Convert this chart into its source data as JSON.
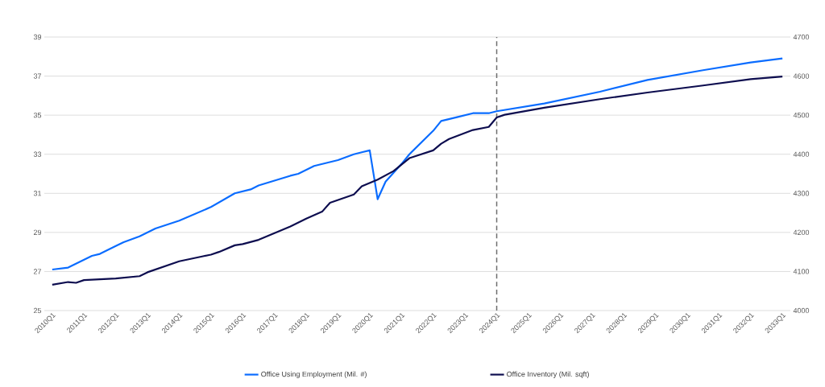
{
  "chart_data": {
    "type": "line",
    "xlim": [
      "2009-10",
      "2033-04"
    ],
    "xticks": [
      {
        "value": "2010-01",
        "label": "2010Q1"
      },
      {
        "value": "2011-01",
        "label": "2011Q1"
      },
      {
        "value": "2012-01",
        "label": "2012Q1"
      },
      {
        "value": "2013-01",
        "label": "2013Q1"
      },
      {
        "value": "2014-01",
        "label": "2014Q1"
      },
      {
        "value": "2015-01",
        "label": "2015Q1"
      },
      {
        "value": "2016-01",
        "label": "2016Q1"
      },
      {
        "value": "2017-01",
        "label": "2017Q1"
      },
      {
        "value": "2018-01",
        "label": "2018Q1"
      },
      {
        "value": "2019-01",
        "label": "2019Q1"
      },
      {
        "value": "2020-01",
        "label": "2020Q1"
      },
      {
        "value": "2021-01",
        "label": "2021Q1"
      },
      {
        "value": "2022-01",
        "label": "2022Q1"
      },
      {
        "value": "2023-01",
        "label": "2023Q1"
      },
      {
        "value": "2024-01",
        "label": "2024Q1"
      },
      {
        "value": "2025-01",
        "label": "2025Q1"
      },
      {
        "value": "2026-01",
        "label": "2026Q1"
      },
      {
        "value": "2027-01",
        "label": "2027Q1"
      },
      {
        "value": "2028-01",
        "label": "2028Q1"
      },
      {
        "value": "2029-01",
        "label": "2029Q1"
      },
      {
        "value": "2030-01",
        "label": "2030Q1"
      },
      {
        "value": "2031-01",
        "label": "2031Q1"
      },
      {
        "value": "2032-01",
        "label": "2032Q1"
      },
      {
        "value": "2033-01",
        "label": "2033Q1"
      }
    ],
    "ylim": [
      25,
      39
    ],
    "yticks": [
      25,
      27,
      29,
      31,
      33,
      35,
      37,
      39
    ],
    "y2lim": [
      4000,
      4700
    ],
    "y2ticks": [
      4000,
      4100,
      4200,
      4300,
      4400,
      4500,
      4600,
      4700
    ],
    "grid": "y",
    "legend": "bottom",
    "marker": "none",
    "line_style": "solid",
    "ref_lines": [
      {
        "axis": "x",
        "value": "2024-01",
        "color": "#6e6e6e",
        "line_style": "dashed"
      }
    ],
    "series": [
      {
        "name": "Office Using Employment (Mil. #)",
        "color": "#0a6cff",
        "axis": "y",
        "x": [
          "2010-01",
          "2010-07",
          "2011-04",
          "2011-07",
          "2012-01",
          "2012-04",
          "2012-10",
          "2013-04",
          "2014-01",
          "2015-01",
          "2015-10",
          "2016-04",
          "2016-07",
          "2017-07",
          "2017-10",
          "2018-04",
          "2019-01",
          "2019-07",
          "2019-10",
          "2020-01",
          "2020-04",
          "2020-07",
          "2021-01",
          "2021-04",
          "2022-01",
          "2022-04",
          "2022-10",
          "2023-01",
          "2023-04",
          "2023-10",
          "2024-01",
          "2025-07",
          "2027-04",
          "2028-10",
          "2030-07",
          "2032-01",
          "2033-01"
        ],
        "values": [
          27.1,
          27.2,
          27.8,
          27.9,
          28.3,
          28.5,
          28.8,
          29.2,
          29.6,
          30.3,
          31.0,
          31.2,
          31.4,
          31.9,
          32.0,
          32.4,
          32.7,
          33.0,
          33.1,
          33.2,
          30.7,
          31.6,
          32.5,
          33.0,
          34.2,
          34.7,
          34.9,
          35.0,
          35.1,
          35.1,
          35.2,
          35.6,
          36.2,
          36.8,
          37.3,
          37.7,
          37.9
        ]
      },
      {
        "name": "Office Inventory  (Mil. sqft)",
        "color": "#0d0d4f",
        "axis": "y2",
        "x": [
          "2010-01",
          "2010-07",
          "2010-10",
          "2011-01",
          "2012-01",
          "2012-10",
          "2013-01",
          "2014-01",
          "2014-10",
          "2015-01",
          "2015-04",
          "2015-10",
          "2016-01",
          "2016-07",
          "2017-01",
          "2017-07",
          "2018-01",
          "2018-07",
          "2018-10",
          "2019-07",
          "2019-10",
          "2020-04",
          "2020-10",
          "2021-04",
          "2022-01",
          "2022-04",
          "2022-07",
          "2023-04",
          "2023-10",
          "2024-01",
          "2024-04",
          "2025-07",
          "2027-04",
          "2028-10",
          "2030-07",
          "2032-01",
          "2033-01"
        ],
        "values": [
          4066,
          4073,
          4071,
          4078,
          4082,
          4088,
          4098,
          4126,
          4139,
          4143,
          4150,
          4167,
          4170,
          4181,
          4198,
          4215,
          4235,
          4253,
          4276,
          4297,
          4318,
          4335,
          4357,
          4390,
          4410,
          4427,
          4439,
          4462,
          4470,
          4494,
          4501,
          4519,
          4541,
          4558,
          4576,
          4592,
          4599
        ]
      }
    ]
  }
}
